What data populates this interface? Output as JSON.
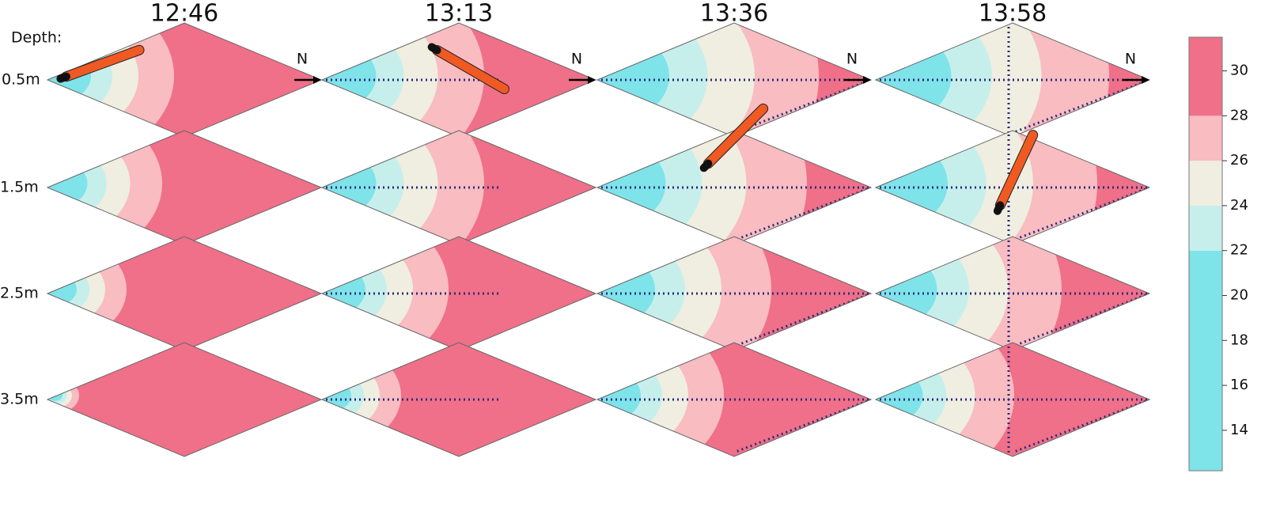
{
  "column_titles": [
    "12:46",
    "13:13",
    "13:36",
    "13:58"
  ],
  "depth_heading": "Depth:",
  "depths": [
    "0.5m",
    "1.5m",
    "2.5m",
    "3.5m"
  ],
  "north_label": "N",
  "colorbar": {
    "range": [
      12.2,
      31.5
    ],
    "ticks": [
      14,
      16,
      18,
      20,
      22,
      24,
      26,
      28,
      30
    ],
    "bands": [
      {
        "from": 12.2,
        "to": 22,
        "color": "#7fe3ea"
      },
      {
        "from": 22,
        "to": 24,
        "color": "#c6efec"
      },
      {
        "from": 24,
        "to": 26,
        "color": "#efeee0"
      },
      {
        "from": 26,
        "to": 28,
        "color": "#f8bcc1"
      },
      {
        "from": 28,
        "to": 31.5,
        "color": "#ef7088"
      }
    ]
  }
}
